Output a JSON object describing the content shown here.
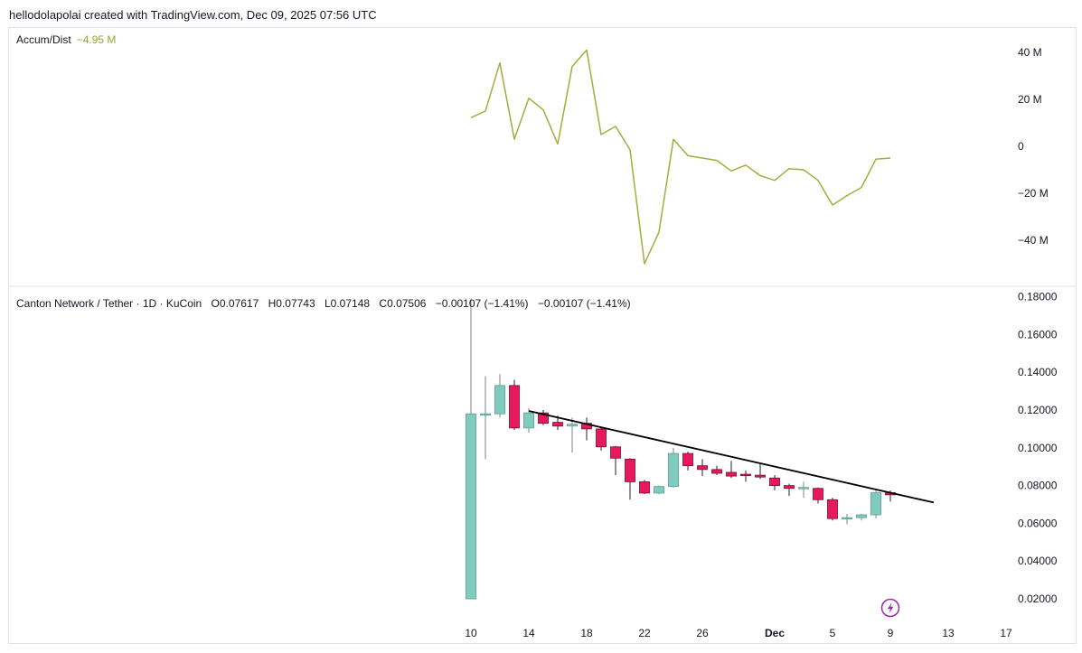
{
  "header": {
    "attribution": "hellodolapolai created with TradingView.com, Dec 09, 2025 07:56 UTC"
  },
  "indicator": {
    "name": "Accum/Dist",
    "value": "−4.95 M",
    "line_color": "#a3ad3d"
  },
  "main_legend": {
    "symbol": "Canton Network / Tether · 1D · KuCoin",
    "open": "O0.07617",
    "high": "H0.07743",
    "low": "L0.07148",
    "close": "C0.07506",
    "change_1": "−0.00107 (−1.41%)",
    "change_2": "−0.00107 (−1.41%)"
  },
  "colors": {
    "up": "#7fcbc0",
    "down": "#e8185d",
    "trendline": "#000000",
    "grid": "#e0e3eb",
    "badge": "#9c27b0"
  },
  "badge_icon": "lightning-icon",
  "chart_data": [
    {
      "type": "line",
      "name": "Accum/Dist",
      "unit": "M",
      "yticks": [
        "40 M",
        "20 M",
        "0",
        "−20 M",
        "−40 M"
      ],
      "ytick_values": [
        40,
        20,
        0,
        -20,
        -40
      ],
      "ylim": [
        -52,
        46
      ],
      "x": [
        "Nov 10",
        "Nov 11",
        "Nov 12",
        "Nov 13",
        "Nov 14",
        "Nov 15",
        "Nov 16",
        "Nov 17",
        "Nov 18",
        "Nov 19",
        "Nov 20",
        "Nov 21",
        "Nov 22",
        "Nov 23",
        "Nov 24",
        "Nov 25",
        "Nov 26",
        "Nov 27",
        "Nov 28",
        "Nov 29",
        "Nov 30",
        "Dec 1",
        "Dec 2",
        "Dec 3",
        "Dec 4",
        "Dec 5",
        "Dec 6",
        "Dec 7",
        "Dec 8",
        "Dec 9"
      ],
      "values": [
        12.2,
        15,
        35.5,
        3,
        20.5,
        15.5,
        1,
        34,
        41,
        5,
        8.5,
        -1.5,
        -50,
        -36.5,
        3,
        -4,
        -5,
        -6,
        -10.5,
        -8,
        -12.5,
        -14.5,
        -9.5,
        -10,
        -14.5,
        -25,
        -21,
        -17.5,
        -5.5,
        -5
      ]
    },
    {
      "type": "candlestick",
      "name": "Canton Network / Tether",
      "yticks": [
        "0.18000",
        "0.16000",
        "0.14000",
        "0.12000",
        "0.10000",
        "0.08000",
        "0.06000",
        "0.04000",
        "0.02000"
      ],
      "ytick_values": [
        0.18,
        0.16,
        0.14,
        0.12,
        0.1,
        0.08,
        0.06,
        0.04,
        0.02
      ],
      "ylim": [
        0.0105,
        0.183
      ],
      "xticks": [
        {
          "label": "10",
          "date": "Nov 10"
        },
        {
          "label": "14",
          "date": "Nov 14"
        },
        {
          "label": "18",
          "date": "Nov 18"
        },
        {
          "label": "22",
          "date": "Nov 22"
        },
        {
          "label": "26",
          "date": "Nov 26"
        },
        {
          "label": "Dec",
          "date": "Dec 1",
          "bold": true
        },
        {
          "label": "5",
          "date": "Dec 5"
        },
        {
          "label": "9",
          "date": "Dec 9"
        },
        {
          "label": "13",
          "date": "Dec 13"
        },
        {
          "label": "17",
          "date": "Dec 17"
        }
      ],
      "candles": [
        {
          "date": "Nov 10",
          "o": 0.02,
          "h": 0.179,
          "l": 0.02,
          "c": 0.118
        },
        {
          "date": "Nov 11",
          "o": 0.1175,
          "h": 0.138,
          "l": 0.094,
          "c": 0.118
        },
        {
          "date": "Nov 12",
          "o": 0.118,
          "h": 0.139,
          "l": 0.116,
          "c": 0.133
        },
        {
          "date": "Nov 13",
          "o": 0.133,
          "h": 0.136,
          "l": 0.1095,
          "c": 0.1105
        },
        {
          "date": "Nov 14",
          "o": 0.1105,
          "h": 0.121,
          "l": 0.108,
          "c": 0.1185
        },
        {
          "date": "Nov 15",
          "o": 0.1185,
          "h": 0.12,
          "l": 0.112,
          "c": 0.113
        },
        {
          "date": "Nov 16",
          "o": 0.1135,
          "h": 0.117,
          "l": 0.1095,
          "c": 0.1115
        },
        {
          "date": "Nov 17",
          "o": 0.1115,
          "h": 0.116,
          "l": 0.0975,
          "c": 0.1125
        },
        {
          "date": "Nov 18",
          "o": 0.113,
          "h": 0.116,
          "l": 0.104,
          "c": 0.11
        },
        {
          "date": "Nov 19",
          "o": 0.11,
          "h": 0.111,
          "l": 0.0985,
          "c": 0.1005
        },
        {
          "date": "Nov 20",
          "o": 0.1005,
          "h": 0.101,
          "l": 0.0855,
          "c": 0.0945
        },
        {
          "date": "Nov 21",
          "o": 0.094,
          "h": 0.0945,
          "l": 0.0725,
          "c": 0.082
        },
        {
          "date": "Nov 22",
          "o": 0.082,
          "h": 0.083,
          "l": 0.0755,
          "c": 0.076
        },
        {
          "date": "Nov 23",
          "o": 0.076,
          "h": 0.08,
          "l": 0.0755,
          "c": 0.0795
        },
        {
          "date": "Nov 24",
          "o": 0.0795,
          "h": 0.1,
          "l": 0.079,
          "c": 0.097
        },
        {
          "date": "Nov 25",
          "o": 0.097,
          "h": 0.098,
          "l": 0.088,
          "c": 0.0905
        },
        {
          "date": "Nov 26",
          "o": 0.0905,
          "h": 0.094,
          "l": 0.085,
          "c": 0.0885
        },
        {
          "date": "Nov 27",
          "o": 0.0885,
          "h": 0.0905,
          "l": 0.0855,
          "c": 0.0865
        },
        {
          "date": "Nov 28",
          "o": 0.087,
          "h": 0.093,
          "l": 0.084,
          "c": 0.085
        },
        {
          "date": "Nov 29",
          "o": 0.086,
          "h": 0.088,
          "l": 0.082,
          "c": 0.0858
        },
        {
          "date": "Nov 30",
          "o": 0.0855,
          "h": 0.0915,
          "l": 0.0835,
          "c": 0.0845
        },
        {
          "date": "Dec 1",
          "o": 0.084,
          "h": 0.0855,
          "l": 0.0775,
          "c": 0.08
        },
        {
          "date": "Dec 2",
          "o": 0.08,
          "h": 0.081,
          "l": 0.0745,
          "c": 0.0785
        },
        {
          "date": "Dec 3",
          "o": 0.079,
          "h": 0.082,
          "l": 0.0735,
          "c": 0.079
        },
        {
          "date": "Dec 4",
          "o": 0.0785,
          "h": 0.079,
          "l": 0.0705,
          "c": 0.0725
        },
        {
          "date": "Dec 5",
          "o": 0.0725,
          "h": 0.0735,
          "l": 0.0615,
          "c": 0.0625
        },
        {
          "date": "Dec 6",
          "o": 0.0625,
          "h": 0.065,
          "l": 0.0595,
          "c": 0.063
        },
        {
          "date": "Dec 7",
          "o": 0.063,
          "h": 0.065,
          "l": 0.0615,
          "c": 0.0645
        },
        {
          "date": "Dec 8",
          "o": 0.0645,
          "h": 0.078,
          "l": 0.0625,
          "c": 0.0762
        },
        {
          "date": "Dec 9",
          "o": 0.0762,
          "h": 0.0774,
          "l": 0.0715,
          "c": 0.0751
        }
      ],
      "trendline": {
        "from": {
          "date": "Nov 14",
          "value": 0.1195
        },
        "to": {
          "date": "Dec 12",
          "value": 0.071
        }
      }
    }
  ]
}
